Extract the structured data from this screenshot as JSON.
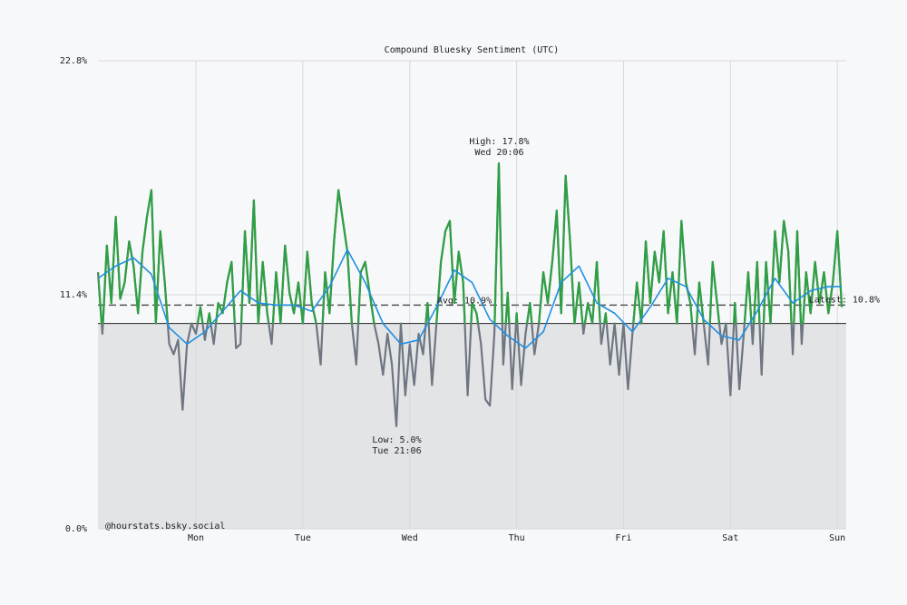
{
  "chart_data": {
    "type": "line",
    "title": "Compound Bluesky Sentiment (UTC)",
    "xlim": [
      0,
      168
    ],
    "xticks": [
      {
        "value": 22,
        "label": "Mon"
      },
      {
        "value": 46,
        "label": "Tue"
      },
      {
        "value": 70,
        "label": "Wed"
      },
      {
        "value": 94,
        "label": "Thu"
      },
      {
        "value": 118,
        "label": "Fri"
      },
      {
        "value": 142,
        "label": "Sat"
      },
      {
        "value": 166,
        "label": "Sun"
      }
    ],
    "ylim": [
      0,
      22.8
    ],
    "yticks": [
      {
        "value": 0,
        "label": "0.0%"
      },
      {
        "value": 11.4,
        "label": "11.4%"
      },
      {
        "value": 22.8,
        "label": "22.8%"
      }
    ],
    "grid": true,
    "baseline": 10.0,
    "series": [
      {
        "color": "#2ea043",
        "below_color": "#6e7681",
        "x": [
          0,
          1,
          2,
          3,
          4,
          5,
          6,
          7,
          8,
          9,
          10,
          11,
          12,
          13,
          14,
          15,
          16,
          17,
          18,
          19,
          20,
          21,
          22,
          23,
          24,
          25,
          26,
          27,
          28,
          29,
          30,
          31,
          32,
          33,
          34,
          35,
          36,
          37,
          38,
          39,
          40,
          41,
          42,
          43,
          44,
          45,
          46,
          47,
          48,
          49,
          50,
          51,
          52,
          53,
          54,
          55,
          56,
          57,
          58,
          59,
          60,
          61,
          62,
          63,
          64,
          65,
          66,
          67,
          68,
          69,
          70,
          71,
          72,
          73,
          74,
          75,
          76,
          77,
          78,
          79,
          80,
          81,
          82,
          83,
          84,
          85,
          86,
          87,
          88,
          89,
          90,
          91,
          92,
          93,
          94,
          95,
          96,
          97,
          98,
          99,
          100,
          101,
          102,
          103,
          104,
          105,
          106,
          107,
          108,
          109,
          110,
          111,
          112,
          113,
          114,
          115,
          116,
          117,
          118,
          119,
          120,
          121,
          122,
          123,
          124,
          125,
          126,
          127,
          128,
          129,
          130,
          131,
          132,
          133,
          134,
          135,
          136,
          137,
          138,
          139,
          140,
          141,
          142,
          143,
          144,
          145,
          146,
          147,
          148,
          149,
          150,
          151,
          152,
          153,
          154,
          155,
          156,
          157,
          158,
          159,
          160,
          161,
          162,
          163,
          164,
          165,
          166,
          167
        ],
        "values": [
          12.5,
          9.5,
          13.8,
          11.0,
          15.2,
          11.2,
          12.0,
          14.0,
          12.8,
          10.5,
          13.5,
          15.2,
          16.5,
          10.0,
          14.5,
          12.0,
          9.0,
          8.5,
          9.2,
          5.8,
          9.0,
          10.0,
          9.5,
          10.8,
          9.2,
          10.5,
          9.0,
          11.0,
          10.5,
          12.0,
          13.0,
          8.8,
          9.0,
          14.5,
          11.0,
          16.0,
          10.0,
          13.0,
          10.5,
          9.0,
          12.5,
          10.0,
          13.8,
          11.5,
          10.5,
          12.0,
          10.0,
          13.5,
          11.0,
          10.0,
          8.0,
          12.5,
          10.5,
          14.0,
          16.5,
          15.0,
          13.5,
          10.0,
          8.0,
          12.5,
          13.0,
          11.5,
          10.0,
          9.0,
          7.5,
          9.5,
          8.0,
          5.0,
          10.0,
          6.5,
          9.0,
          7.0,
          9.5,
          8.5,
          11.0,
          7.0,
          10.0,
          13.0,
          14.5,
          15.0,
          11.0,
          13.5,
          12.0,
          6.5,
          11.0,
          10.5,
          9.0,
          6.3,
          6.0,
          9.5,
          17.8,
          8.0,
          11.5,
          6.8,
          10.5,
          7.0,
          9.5,
          11.0,
          8.5,
          10.0,
          12.5,
          11.0,
          13.0,
          15.5,
          10.5,
          17.2,
          14.0,
          10.0,
          12.0,
          9.5,
          11.0,
          10.0,
          13.0,
          9.0,
          10.5,
          8.0,
          10.0,
          7.5,
          10.0,
          6.8,
          9.5,
          12.0,
          10.0,
          14.0,
          11.0,
          13.5,
          12.0,
          14.5,
          10.5,
          12.5,
          10.0,
          15.0,
          12.0,
          11.0,
          8.5,
          12.0,
          10.0,
          8.0,
          13.0,
          11.0,
          9.0,
          10.0,
          6.5,
          11.0,
          6.8,
          9.5,
          12.5,
          9.0,
          13.0,
          7.5,
          13.0,
          10.0,
          14.5,
          12.0,
          15.0,
          13.5,
          8.5,
          14.5,
          9.0,
          12.5,
          10.5,
          13.0,
          11.0,
          12.5,
          10.5,
          12.0,
          14.5,
          10.8
        ]
      },
      {
        "color": "#1f8fe0",
        "x": [
          0,
          4,
          8,
          12,
          16,
          20,
          24,
          28,
          32,
          36,
          40,
          44,
          48,
          52,
          56,
          60,
          64,
          68,
          72,
          76,
          80,
          84,
          88,
          92,
          96,
          100,
          104,
          108,
          112,
          116,
          120,
          124,
          128,
          132,
          136,
          140,
          144,
          148,
          152,
          156,
          160,
          164,
          167
        ],
        "values": [
          12.2,
          12.8,
          13.2,
          12.4,
          9.8,
          9.0,
          9.6,
          10.6,
          11.6,
          11.0,
          10.9,
          10.9,
          10.6,
          11.8,
          13.6,
          12.0,
          10.0,
          9.0,
          9.2,
          10.8,
          12.6,
          12.0,
          10.2,
          9.4,
          8.8,
          9.6,
          12.0,
          12.8,
          11.0,
          10.5,
          9.6,
          10.8,
          12.2,
          11.8,
          10.2,
          9.4,
          9.2,
          10.6,
          12.2,
          11.0,
          11.6,
          11.8,
          11.8
        ]
      }
    ],
    "avg": {
      "value": 10.9,
      "label": "Avg: 10.9%"
    },
    "latest": {
      "value": 10.8,
      "label": "Latest: 10.8%"
    },
    "high": {
      "value": 17.8,
      "x": 90.1,
      "label": "High: 17.8%",
      "time": "Wed 20:06"
    },
    "low": {
      "value": 5.0,
      "x": 67.1,
      "label": "Low: 5.0%",
      "time": "Tue 21:06"
    },
    "watermark": "@hourstats.bsky.social"
  }
}
